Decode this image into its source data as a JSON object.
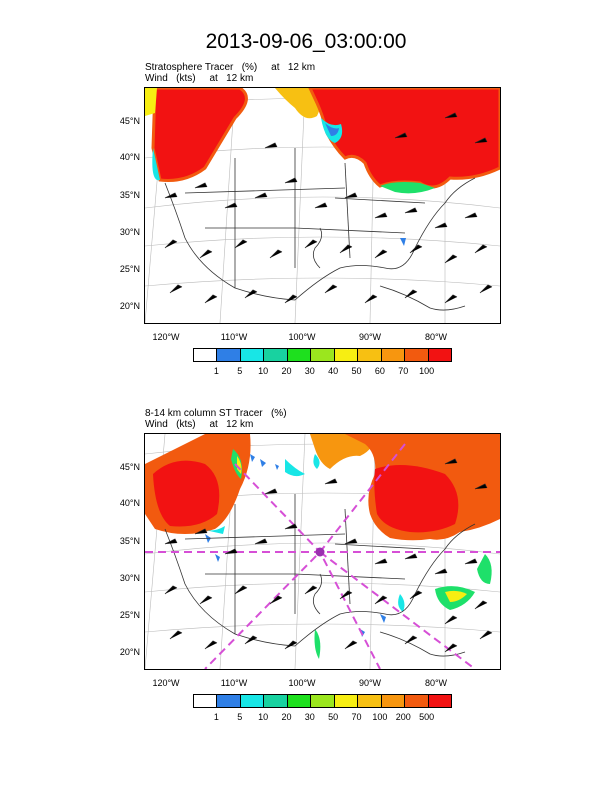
{
  "title": "2013-09-06_03:00:00",
  "colors": {
    "tracer_red": "#f21212",
    "tracer_orange": "#f25a0f",
    "tracer_yellow": "#f7ee12",
    "tracer_cyan": "#18e6e6",
    "tracer_blue": "#2f7fe6",
    "tracer_green": "#1ee06a",
    "trajectory_magenta": "#d64fd6",
    "border_gray": "#333333"
  },
  "panels": [
    {
      "label_line1": "Stratosphere Tracer   (%)     at   12 km",
      "label_line2": "Wind   (kts)     at   12 km",
      "lat_ticks": [
        "45°N",
        "40°N",
        "35°N",
        "30°N",
        "25°N",
        "20°N"
      ],
      "lon_ticks": [
        "120°W",
        "110°W",
        "100°W",
        "90°W",
        "80°W"
      ],
      "colorbar_labels": [
        "1",
        "5",
        "10",
        "20",
        "30",
        "40",
        "50",
        "60",
        "70",
        "100"
      ],
      "colorbar_colors": [
        "#ffffff",
        "#2f7fe6",
        "#18e6e6",
        "#18d2a0",
        "#1ee01e",
        "#9be61e",
        "#f7ee12",
        "#f7c012",
        "#f7960f",
        "#f25a0f",
        "#f21212"
      ]
    },
    {
      "label_line1": "8-14 km column ST Tracer   (%)",
      "label_line2": "Wind   (kts)     at   12 km",
      "lat_ticks": [
        "45°N",
        "40°N",
        "35°N",
        "30°N",
        "25°N",
        "20°N"
      ],
      "lon_ticks": [
        "120°W",
        "110°W",
        "100°W",
        "90°W",
        "80°W"
      ],
      "colorbar_labels": [
        "1",
        "5",
        "10",
        "20",
        "30",
        "50",
        "70",
        "100",
        "200",
        "500"
      ],
      "colorbar_colors": [
        "#ffffff",
        "#2f7fe6",
        "#18e6e6",
        "#18d2a0",
        "#1ee01e",
        "#9be61e",
        "#f7ee12",
        "#f7c012",
        "#f7960f",
        "#f25a0f",
        "#f21212"
      ]
    }
  ]
}
